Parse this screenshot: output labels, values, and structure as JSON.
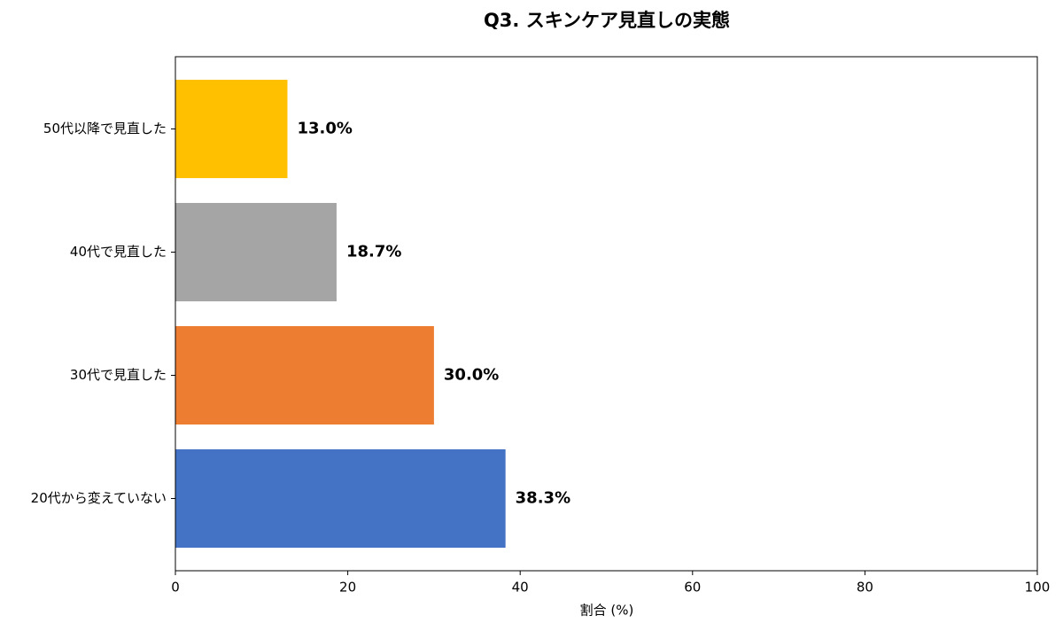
{
  "chart_data": {
    "type": "bar",
    "orientation": "horizontal",
    "title": "Q3. スキンケア見直しの実態",
    "xlabel": "割合 (%)",
    "categories": [
      "20代から変えていない",
      "30代で見直した",
      "40代で見直した",
      "50代以降で見直した"
    ],
    "values": [
      38.3,
      30.0,
      18.7,
      13.0
    ],
    "value_labels": [
      "38.3%",
      "30.0%",
      "18.7%",
      "13.0%"
    ],
    "colors": [
      "#4472c4",
      "#ed7d31",
      "#a5a5a5",
      "#ffc000"
    ],
    "xlim": [
      0,
      100
    ],
    "xticks": [
      0,
      20,
      40,
      60,
      80,
      100
    ],
    "grid": false
  }
}
